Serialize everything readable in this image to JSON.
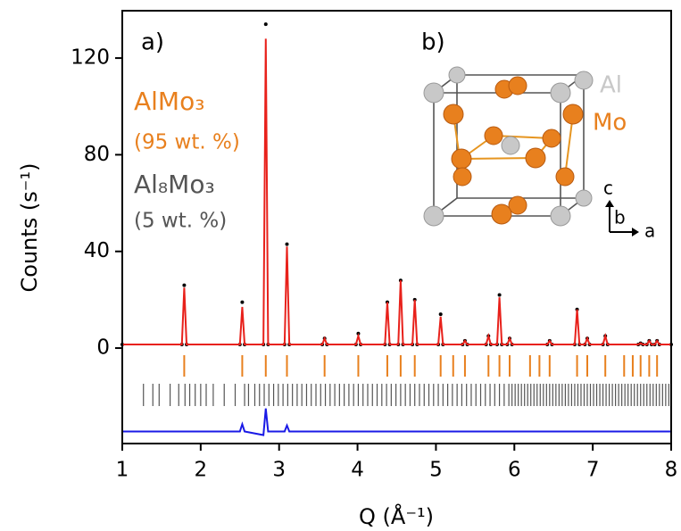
{
  "chart_data": {
    "type": "line",
    "xlabel": "Q (Å⁻¹)",
    "ylabel": "Counts (s⁻¹)",
    "xlim": [
      1,
      8
    ],
    "ylim": [
      -39.5,
      139.6
    ],
    "xticks": [
      1,
      2,
      3,
      4,
      5,
      6,
      7,
      8
    ],
    "yticks": [
      0,
      40,
      80,
      120
    ],
    "annotations": [
      "a)",
      "b)"
    ],
    "series": [
      {
        "style": "points",
        "color": "#000000",
        "x": [
          1,
          1.76,
          1.79,
          1.82,
          2.5,
          2.53,
          2.56,
          2.8,
          2.83,
          2.86,
          3.07,
          3.1,
          3.13,
          3.55,
          3.58,
          3.61,
          3.98,
          4.01,
          4.04,
          4.35,
          4.38,
          4.41,
          4.52,
          4.55,
          4.58,
          4.7,
          4.73,
          4.76,
          5.03,
          5.06,
          5.09,
          5.34,
          5.37,
          5.4,
          5.64,
          5.67,
          5.7,
          5.78,
          5.81,
          5.84,
          5.91,
          5.94,
          5.97,
          6.42,
          6.45,
          6.48,
          6.77,
          6.8,
          6.83,
          6.9,
          6.93,
          6.96,
          7.13,
          7.16,
          7.19,
          7.58,
          7.61,
          7.64,
          7.69,
          7.72,
          7.75,
          7.79,
          7.82,
          7.85,
          8
        ],
        "values": [
          1.5,
          1.5,
          26,
          1.5,
          1.5,
          19,
          1.5,
          1.5,
          134,
          1.5,
          1.5,
          43,
          1.5,
          1.5,
          4,
          1.5,
          1.5,
          6,
          1.5,
          1.5,
          19,
          1.5,
          1.5,
          28,
          1.5,
          1.5,
          20,
          1.5,
          1.5,
          14,
          1.5,
          1.5,
          3,
          1.5,
          1.5,
          5,
          1.5,
          1.5,
          22,
          1.5,
          1.5,
          4,
          1.5,
          1.5,
          3,
          1.5,
          1.5,
          16,
          1.5,
          1.5,
          4,
          1.5,
          1.5,
          5,
          1.5,
          1.5,
          2,
          1.5,
          1.5,
          3,
          1.5,
          1.5,
          3,
          1.5,
          1.5
        ]
      },
      {
        "style": "line",
        "color": "#e8211b",
        "x": [
          1,
          1.76,
          1.79,
          1.82,
          2.5,
          2.53,
          2.56,
          2.8,
          2.83,
          2.86,
          3.07,
          3.1,
          3.13,
          3.55,
          3.58,
          3.61,
          3.98,
          4.01,
          4.04,
          4.35,
          4.38,
          4.41,
          4.52,
          4.55,
          4.58,
          4.7,
          4.73,
          4.76,
          5.03,
          5.06,
          5.09,
          5.34,
          5.37,
          5.4,
          5.64,
          5.67,
          5.7,
          5.78,
          5.81,
          5.84,
          5.91,
          5.94,
          5.97,
          6.42,
          6.45,
          6.48,
          6.77,
          6.8,
          6.83,
          6.9,
          6.93,
          6.96,
          7.13,
          7.16,
          7.19,
          7.58,
          7.61,
          7.64,
          7.69,
          7.72,
          7.75,
          7.79,
          7.82,
          7.85,
          8
        ],
        "values": [
          1.5,
          1.5,
          25,
          1.5,
          1.5,
          17,
          1.5,
          1.5,
          128,
          1.5,
          1.5,
          42,
          1.5,
          1.5,
          4,
          1.5,
          1.5,
          5,
          1.5,
          1.5,
          19,
          1.5,
          1.5,
          28,
          1.5,
          1.5,
          20,
          1.5,
          1.5,
          13,
          1.5,
          1.5,
          3,
          1.5,
          1.5,
          5,
          1.5,
          1.5,
          21,
          1.5,
          1.5,
          4,
          1.5,
          1.5,
          3,
          1.5,
          1.5,
          16,
          1.5,
          1.5,
          4,
          1.5,
          1.5,
          5,
          1.5,
          1.5,
          2,
          1.5,
          1.5,
          3,
          1.5,
          1.5,
          3,
          1.5,
          1.5
        ]
      },
      {
        "style": "line",
        "color": "#1a1ae6",
        "x": [
          1,
          2.5,
          2.53,
          2.56,
          2.8,
          2.83,
          2.86,
          3.07,
          3.1,
          3.13,
          8
        ],
        "values": [
          -34.5,
          -34.5,
          -31.5,
          -34.5,
          -36,
          -25,
          -34.5,
          -34.5,
          -32,
          -34.5,
          -34.5
        ]
      }
    ],
    "phases": [
      {
        "name": "AlMo₃",
        "fraction": "(95 wt. %)",
        "color": "#e8801e",
        "positions": [
          1.79,
          2.53,
          2.83,
          3.1,
          3.58,
          4.01,
          4.38,
          4.55,
          4.73,
          5.06,
          5.22,
          5.37,
          5.67,
          5.81,
          5.94,
          6.2,
          6.32,
          6.45,
          6.8,
          6.93,
          7.16,
          7.4,
          7.51,
          7.61,
          7.72,
          7.82
        ]
      },
      {
        "name": "Al₈Mo₃",
        "fraction": "(5 wt. %)",
        "color": "#555555",
        "positions": [
          1.27,
          1.39,
          1.47,
          1.61,
          1.72,
          1.8,
          1.86,
          1.93,
          2.0,
          2.07,
          2.16,
          2.3,
          2.44,
          2.56,
          2.61,
          2.69,
          2.75,
          2.81,
          2.87,
          2.93,
          2.99,
          3.05,
          3.11,
          3.17,
          3.23,
          3.29,
          3.35,
          3.41,
          3.47,
          3.53,
          3.59,
          3.65,
          3.71,
          3.77,
          3.83,
          3.89,
          3.95,
          4.01,
          4.07,
          4.13,
          4.19,
          4.25,
          4.31,
          4.37,
          4.43,
          4.49,
          4.55,
          4.61,
          4.67,
          4.73,
          4.79,
          4.85,
          4.91,
          4.97,
          5.03,
          5.09,
          5.15,
          5.21,
          5.27,
          5.33,
          5.39,
          5.45,
          5.51,
          5.57,
          5.63,
          5.69,
          5.75,
          5.81,
          5.87,
          5.93,
          5.97,
          6.01,
          6.05,
          6.09,
          6.13,
          6.17,
          6.21,
          6.25,
          6.29,
          6.33,
          6.37,
          6.41,
          6.45,
          6.49,
          6.53,
          6.57,
          6.61,
          6.65,
          6.69,
          6.73,
          6.77,
          6.81,
          6.85,
          6.89,
          6.93,
          6.97,
          7.01,
          7.05,
          7.09,
          7.13,
          7.17,
          7.21,
          7.25,
          7.29,
          7.33,
          7.37,
          7.41,
          7.45,
          7.49,
          7.53,
          7.57,
          7.61,
          7.65,
          7.69,
          7.73,
          7.77,
          7.81,
          7.85,
          7.89,
          7.93,
          7.97
        ]
      }
    ],
    "inset": {
      "atoms": [
        {
          "label": "Al",
          "color": "#c8c8c8"
        },
        {
          "label": "Mo",
          "color": "#e8801e"
        }
      ],
      "axes": [
        "c",
        "b",
        "a"
      ]
    }
  }
}
